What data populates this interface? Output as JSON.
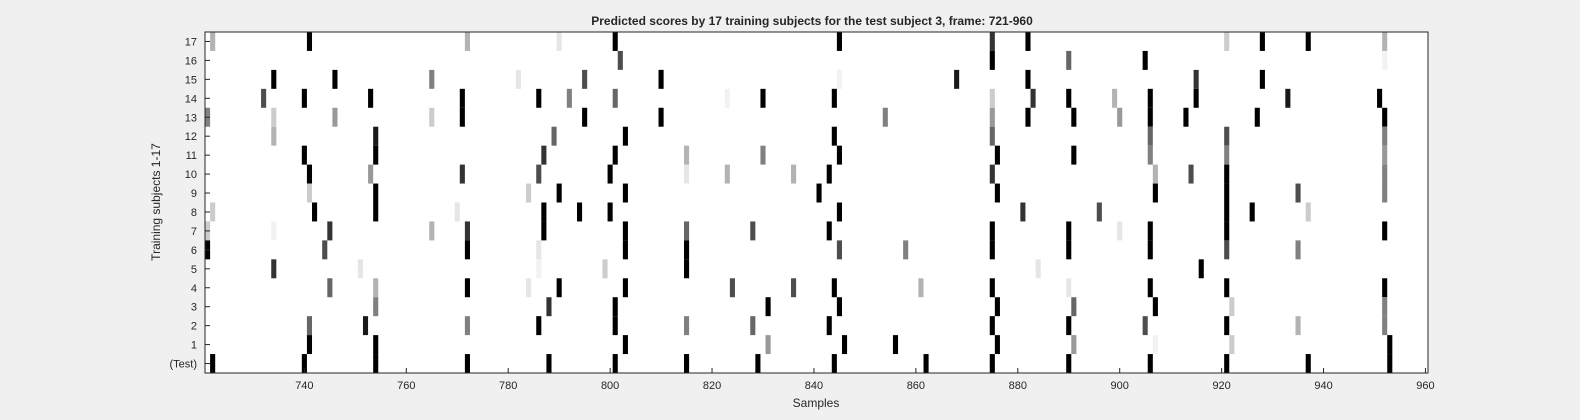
{
  "chart_data": {
    "type": "heatmap",
    "title": "Predicted scores by 17 training subjects for the test subject 3, frame: 721-960",
    "xlabel": "Samples",
    "ylabel": "Training subjects 1-17",
    "xlim": [
      721,
      960
    ],
    "x_ticks": [
      "740",
      "760",
      "780",
      "800",
      "820",
      "840",
      "860",
      "880",
      "900",
      "920",
      "940",
      "960"
    ],
    "y_ticks": [
      "17",
      "16",
      "15",
      "14",
      "13",
      "12",
      "11",
      "10",
      "9",
      "8",
      "7",
      "6",
      "5",
      "4",
      "3",
      "2",
      "1",
      "(Test)"
    ],
    "rows": [
      {
        "label": "17",
        "cells": [
          [
            722,
            0.3
          ],
          [
            741,
            1
          ],
          [
            772,
            0.3
          ],
          [
            790,
            0.1
          ],
          [
            801,
            1
          ],
          [
            845,
            1
          ],
          [
            875,
            0.8
          ],
          [
            882,
            1
          ],
          [
            921,
            0.2
          ],
          [
            928,
            1
          ],
          [
            937,
            1
          ],
          [
            952,
            0.3
          ]
        ]
      },
      {
        "label": "16",
        "cells": [
          [
            802,
            0.7
          ],
          [
            875,
            1
          ],
          [
            890,
            0.6
          ],
          [
            905,
            1
          ],
          [
            952,
            0.05
          ]
        ]
      },
      {
        "label": "15",
        "cells": [
          [
            734,
            1
          ],
          [
            746,
            1
          ],
          [
            765,
            0.5
          ],
          [
            782,
            0.1
          ],
          [
            795,
            0.7
          ],
          [
            810,
            1
          ],
          [
            845,
            0.05
          ],
          [
            868,
            0.9
          ],
          [
            882,
            1
          ],
          [
            915,
            0.8
          ],
          [
            928,
            1
          ]
        ]
      },
      {
        "label": "14",
        "cells": [
          [
            732,
            0.7
          ],
          [
            740,
            1
          ],
          [
            753,
            1
          ],
          [
            771,
            1
          ],
          [
            786,
            1
          ],
          [
            792,
            0.5
          ],
          [
            801,
            0.6
          ],
          [
            823,
            0.05
          ],
          [
            830,
            1
          ],
          [
            844,
            1
          ],
          [
            875,
            0.2
          ],
          [
            883,
            0.8
          ],
          [
            890,
            1
          ],
          [
            899,
            0.3
          ],
          [
            906,
            1
          ],
          [
            915,
            1
          ],
          [
            933,
            0.9
          ],
          [
            951,
            1
          ]
        ]
      },
      {
        "label": "13",
        "cells": [
          [
            721,
            0.5
          ],
          [
            734,
            0.2
          ],
          [
            746,
            0.4
          ],
          [
            765,
            0.2
          ],
          [
            771,
            1
          ],
          [
            795,
            1
          ],
          [
            810,
            1
          ],
          [
            854,
            0.5
          ],
          [
            875,
            0.4
          ],
          [
            882,
            1
          ],
          [
            891,
            1
          ],
          [
            900,
            0.4
          ],
          [
            906,
            1
          ],
          [
            913,
            1
          ],
          [
            927,
            1
          ],
          [
            952,
            1
          ]
        ]
      },
      {
        "label": "12",
        "cells": [
          [
            734,
            0.3
          ],
          [
            754,
            0.9
          ],
          [
            789,
            0.6
          ],
          [
            803,
            1
          ],
          [
            844,
            1
          ],
          [
            875,
            0.6
          ],
          [
            906,
            0.6
          ],
          [
            921,
            0.7
          ],
          [
            952,
            0.5
          ]
        ]
      },
      {
        "label": "11",
        "cells": [
          [
            740,
            1
          ],
          [
            754,
            1
          ],
          [
            787,
            0.8
          ],
          [
            801,
            1
          ],
          [
            815,
            0.3
          ],
          [
            830,
            0.5
          ],
          [
            845,
            1
          ],
          [
            876,
            1
          ],
          [
            891,
            1
          ],
          [
            906,
            0.5
          ],
          [
            921,
            0.5
          ],
          [
            952,
            0.4
          ]
        ]
      },
      {
        "label": "10",
        "cells": [
          [
            741,
            1
          ],
          [
            753,
            0.4
          ],
          [
            771,
            0.8
          ],
          [
            786,
            0.7
          ],
          [
            800,
            1
          ],
          [
            815,
            0.1
          ],
          [
            823,
            0.3
          ],
          [
            836,
            0.3
          ],
          [
            843,
            1
          ],
          [
            875,
            0.8
          ],
          [
            907,
            0.3
          ],
          [
            914,
            0.7
          ],
          [
            921,
            1
          ],
          [
            952,
            0.5
          ]
        ]
      },
      {
        "label": "9",
        "cells": [
          [
            741,
            0.2
          ],
          [
            754,
            1
          ],
          [
            784,
            0.2
          ],
          [
            790,
            1
          ],
          [
            803,
            1
          ],
          [
            841,
            1
          ],
          [
            876,
            1
          ],
          [
            907,
            1
          ],
          [
            921,
            1
          ],
          [
            935,
            0.7
          ],
          [
            952,
            0.5
          ]
        ]
      },
      {
        "label": "8",
        "cells": [
          [
            722,
            0.2
          ],
          [
            742,
            1
          ],
          [
            754,
            1
          ],
          [
            770,
            0.1
          ],
          [
            787,
            1
          ],
          [
            794,
            1
          ],
          [
            800,
            1
          ],
          [
            845,
            1
          ],
          [
            881,
            0.8
          ],
          [
            896,
            0.7
          ],
          [
            921,
            1
          ],
          [
            926,
            1
          ],
          [
            937,
            0.2
          ]
        ]
      },
      {
        "label": "7",
        "cells": [
          [
            721,
            0.2
          ],
          [
            734,
            0.05
          ],
          [
            745,
            0.8
          ],
          [
            765,
            0.3
          ],
          [
            772,
            0.8
          ],
          [
            787,
            1
          ],
          [
            803,
            1
          ],
          [
            815,
            0.6
          ],
          [
            828,
            0.7
          ],
          [
            843,
            1
          ],
          [
            875,
            1
          ],
          [
            890,
            1
          ],
          [
            900,
            0.1
          ],
          [
            906,
            1
          ],
          [
            921,
            1
          ],
          [
            952,
            1
          ]
        ]
      },
      {
        "label": "6",
        "cells": [
          [
            721,
            1
          ],
          [
            744,
            0.7
          ],
          [
            772,
            1
          ],
          [
            786,
            0.1
          ],
          [
            803,
            1
          ],
          [
            815,
            1
          ],
          [
            845,
            0.7
          ],
          [
            858,
            0.5
          ],
          [
            875,
            1
          ],
          [
            890,
            1
          ],
          [
            906,
            1
          ],
          [
            921,
            0.7
          ],
          [
            935,
            0.5
          ]
        ]
      },
      {
        "label": "5",
        "cells": [
          [
            734,
            0.8
          ],
          [
            751,
            0.1
          ],
          [
            786,
            0.05
          ],
          [
            799,
            0.2
          ],
          [
            815,
            1
          ],
          [
            884,
            0.1
          ],
          [
            916,
            1
          ]
        ]
      },
      {
        "label": "4",
        "cells": [
          [
            745,
            0.6
          ],
          [
            754,
            0.3
          ],
          [
            772,
            1
          ],
          [
            784,
            0.1
          ],
          [
            790,
            1
          ],
          [
            803,
            1
          ],
          [
            824,
            0.7
          ],
          [
            836,
            0.7
          ],
          [
            844,
            1
          ],
          [
            861,
            0.3
          ],
          [
            875,
            1
          ],
          [
            890,
            0.1
          ],
          [
            906,
            1
          ],
          [
            921,
            1
          ],
          [
            952,
            1
          ]
        ]
      },
      {
        "label": "3",
        "cells": [
          [
            754,
            0.5
          ],
          [
            788,
            0.8
          ],
          [
            801,
            1
          ],
          [
            831,
            1
          ],
          [
            845,
            1
          ],
          [
            876,
            1
          ],
          [
            891,
            0.6
          ],
          [
            907,
            1
          ],
          [
            922,
            0.2
          ],
          [
            952,
            0.5
          ]
        ]
      },
      {
        "label": "2",
        "cells": [
          [
            741,
            0.6
          ],
          [
            752,
            0.9
          ],
          [
            772,
            0.5
          ],
          [
            786,
            1
          ],
          [
            801,
            1
          ],
          [
            815,
            0.5
          ],
          [
            828,
            0.6
          ],
          [
            843,
            1
          ],
          [
            875,
            1
          ],
          [
            890,
            1
          ],
          [
            905,
            0.7
          ],
          [
            921,
            1
          ],
          [
            935,
            0.3
          ],
          [
            952,
            0.5
          ]
        ]
      },
      {
        "label": "1",
        "cells": [
          [
            741,
            1
          ],
          [
            754,
            1
          ],
          [
            803,
            1
          ],
          [
            831,
            0.4
          ],
          [
            846,
            1
          ],
          [
            856,
            1
          ],
          [
            876,
            1
          ],
          [
            891,
            0.4
          ],
          [
            907,
            0.05
          ],
          [
            922,
            0.2
          ],
          [
            953,
            1
          ]
        ]
      },
      {
        "label": "(Test)",
        "cells": [
          [
            722,
            1
          ],
          [
            740,
            1
          ],
          [
            754,
            1
          ],
          [
            772,
            1
          ],
          [
            788,
            1
          ],
          [
            801,
            1
          ],
          [
            815,
            1
          ],
          [
            829,
            1
          ],
          [
            844,
            1
          ],
          [
            862,
            1
          ],
          [
            875,
            1
          ],
          [
            890,
            1
          ],
          [
            906,
            1
          ],
          [
            921,
            1
          ],
          [
            937,
            1
          ],
          [
            953,
            1
          ]
        ]
      }
    ]
  }
}
